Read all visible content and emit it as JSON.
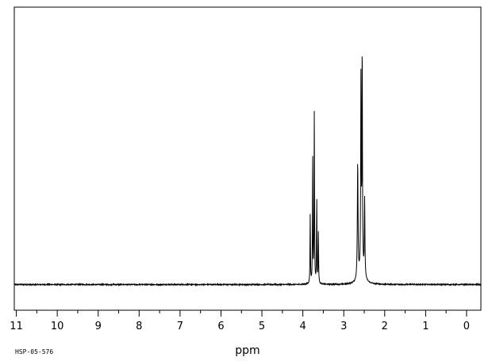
{
  "chart_data": {
    "type": "line",
    "title": "",
    "xlabel": "ppm",
    "ylabel": "",
    "sample_id": "HSP-05-576",
    "xlim": [
      11.05,
      -0.35
    ],
    "x_reversed": true,
    "ylim": [
      -0.1,
      1.08
    ],
    "grid": false,
    "major_ticks": [
      11,
      10,
      9,
      8,
      7,
      6,
      5,
      4,
      3,
      2,
      1,
      0
    ],
    "tick_labels": [
      "11",
      "10",
      "9",
      "8",
      "7",
      "6",
      "5",
      "4",
      "3",
      "2",
      "1",
      "0"
    ],
    "minor_tick_step": 0.5,
    "line_color": "#000000",
    "series": [
      {
        "peaks": [
          {
            "center": 3.82,
            "height": 0.27,
            "width": 0.006
          },
          {
            "center": 3.76,
            "height": 0.5,
            "width": 0.006
          },
          {
            "center": 3.72,
            "height": 0.67,
            "width": 0.006
          },
          {
            "center": 3.66,
            "height": 0.33,
            "width": 0.006
          },
          {
            "center": 3.62,
            "height": 0.2,
            "width": 0.006
          },
          {
            "center": 2.66,
            "height": 0.45,
            "width": 0.01
          },
          {
            "center": 2.58,
            "height": 0.75,
            "width": 0.008
          },
          {
            "center": 2.55,
            "height": 0.85,
            "width": 0.007
          },
          {
            "center": 2.49,
            "height": 0.3,
            "width": 0.008
          },
          {
            "center": 2.56,
            "height": 0.05,
            "width": 0.07
          }
        ]
      }
    ]
  }
}
